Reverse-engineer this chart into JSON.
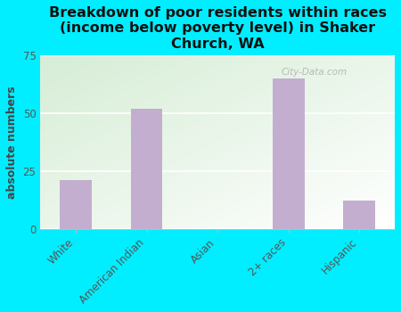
{
  "title": "Breakdown of poor residents within races\n(income below poverty level) in Shaker\nChurch, WA",
  "categories": [
    "White",
    "American Indian",
    "Asian",
    "2+ races",
    "Hispanic"
  ],
  "values": [
    21,
    52,
    0,
    65,
    12
  ],
  "bar_color": "#c4aed0",
  "ylabel": "absolute numbers",
  "ylim": [
    0,
    75
  ],
  "yticks": [
    0,
    25,
    50,
    75
  ],
  "background_color": "#00eeff",
  "plot_bg_topleft": "#d6edd6",
  "plot_bg_topright": "#eef5ee",
  "plot_bg_bottom": "#ffffff",
  "title_fontsize": 11.5,
  "axis_label_fontsize": 9,
  "tick_fontsize": 8.5,
  "watermark": "City-Data.com"
}
